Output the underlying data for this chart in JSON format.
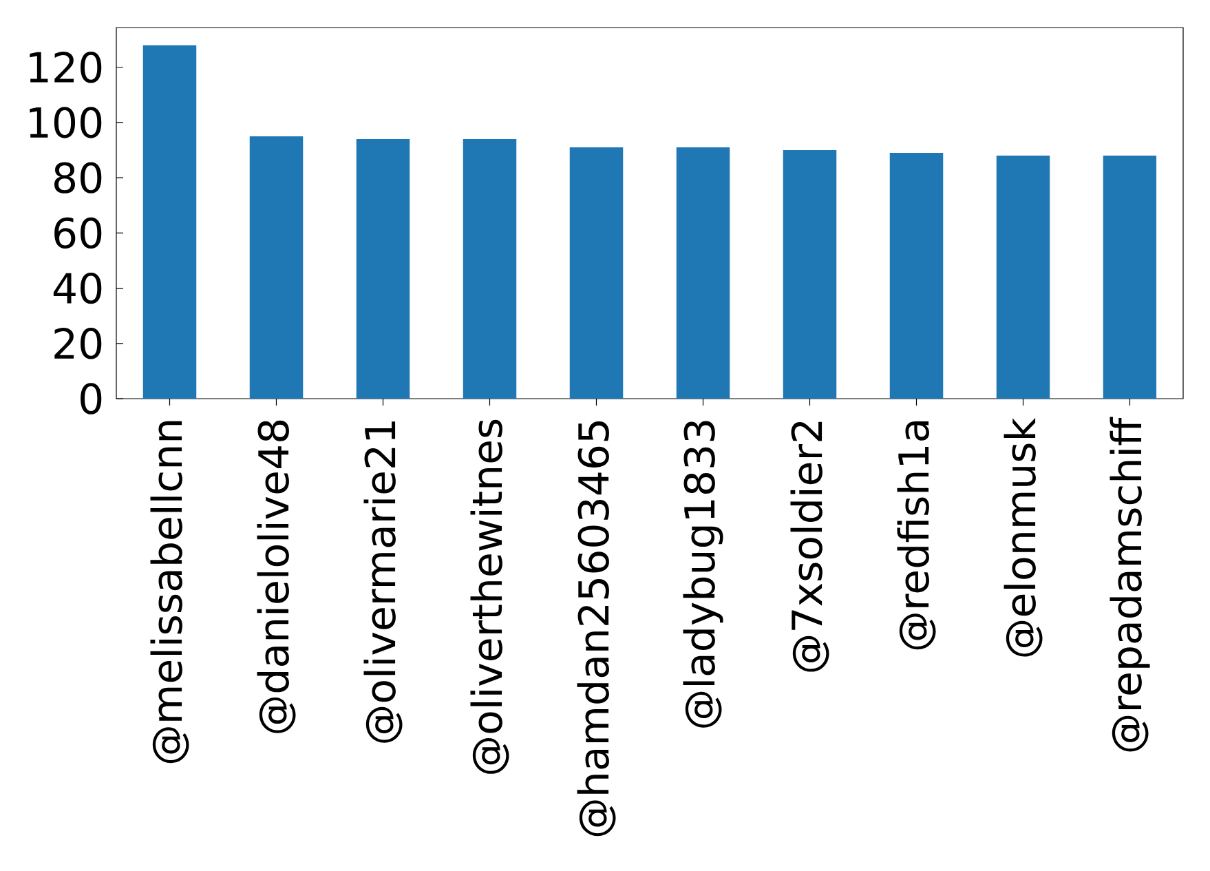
{
  "chart_data": {
    "type": "bar",
    "categories": [
      "@melissabellcnn",
      "@danielolive48",
      "@olivermarie21",
      "@oliverthewitnes",
      "@hamdan25603465",
      "@ladybug1833",
      "@7xsoldier2",
      "@redfish1a",
      "@elonmusk",
      "@repadamschiff"
    ],
    "values": [
      128,
      95,
      94,
      94,
      91,
      91,
      90,
      89,
      88,
      88
    ],
    "color": "#1f77b4",
    "ylim": [
      0,
      134.4
    ],
    "yticks": [
      0,
      20,
      40,
      60,
      80,
      100,
      120
    ],
    "grid": false
  }
}
